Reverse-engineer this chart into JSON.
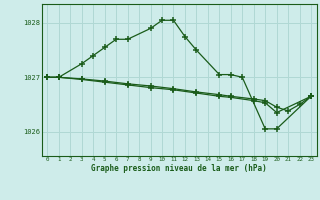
{
  "bg_color": "#ceecea",
  "grid_color": "#b0d8d4",
  "line_color": "#1a5c1a",
  "hours": [
    0,
    1,
    2,
    3,
    4,
    5,
    6,
    7,
    8,
    9,
    10,
    11,
    12,
    13,
    14,
    15,
    16,
    17,
    18,
    19,
    20,
    21,
    22,
    23
  ],
  "line1_hours": [
    0,
    1,
    3,
    4,
    5,
    6,
    7,
    9,
    10,
    11,
    12,
    13,
    15,
    16,
    17,
    19,
    20,
    23
  ],
  "line1_vals": [
    1027.0,
    1027.0,
    1027.25,
    1027.4,
    1027.55,
    1027.7,
    1027.7,
    1027.9,
    1028.05,
    1028.05,
    1027.75,
    1027.5,
    1027.05,
    1027.05,
    1027.0,
    1026.05,
    1026.05,
    1026.65
  ],
  "line2_hours": [
    0,
    1,
    3,
    5,
    7,
    9,
    11,
    13,
    15,
    16,
    18,
    19,
    20,
    21,
    22,
    23
  ],
  "line2_vals": [
    1027.0,
    1027.0,
    1026.97,
    1026.93,
    1026.88,
    1026.84,
    1026.79,
    1026.73,
    1026.68,
    1026.65,
    1026.6,
    1026.57,
    1026.45,
    1026.38,
    1026.5,
    1026.65
  ],
  "line3_hours": [
    0,
    1,
    3,
    5,
    7,
    9,
    11,
    13,
    15,
    16,
    18,
    19,
    20,
    23
  ],
  "line3_vals": [
    1027.0,
    1027.0,
    1026.96,
    1026.91,
    1026.86,
    1026.81,
    1026.77,
    1026.71,
    1026.65,
    1026.63,
    1026.57,
    1026.53,
    1026.35,
    1026.65
  ],
  "ylim": [
    1025.55,
    1028.35
  ],
  "yticks": [
    1026,
    1027,
    1028
  ],
  "xlabel": "Graphe pression niveau de la mer (hPa)",
  "label_color": "#1a5c1a"
}
